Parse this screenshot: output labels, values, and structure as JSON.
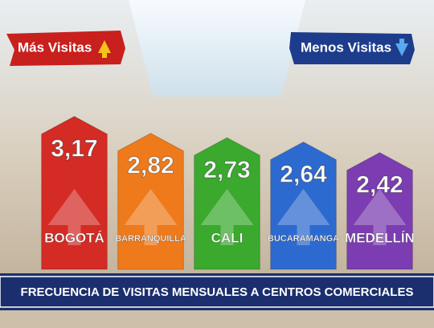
{
  "chart_data": {
    "type": "bar",
    "title": "FRECUENCIA DE VISITAS MENSUALES A CENTROS COMERCIALES",
    "annotations": [
      "Más Visitas",
      "Menos Visitas"
    ],
    "categories": [
      "BOGOTÁ",
      "BARRANQUILLA",
      "CALI",
      "BUCARAMANGA",
      "MEDELLÍN"
    ],
    "values": [
      3.17,
      2.82,
      2.73,
      2.64,
      2.42
    ],
    "value_labels": [
      "3,17",
      "2,82",
      "2,73",
      "2,64",
      "2,42"
    ],
    "colors": [
      "#d42b25",
      "#ee7a1c",
      "#3aa92e",
      "#2d6ad0",
      "#7b3db1"
    ]
  }
}
